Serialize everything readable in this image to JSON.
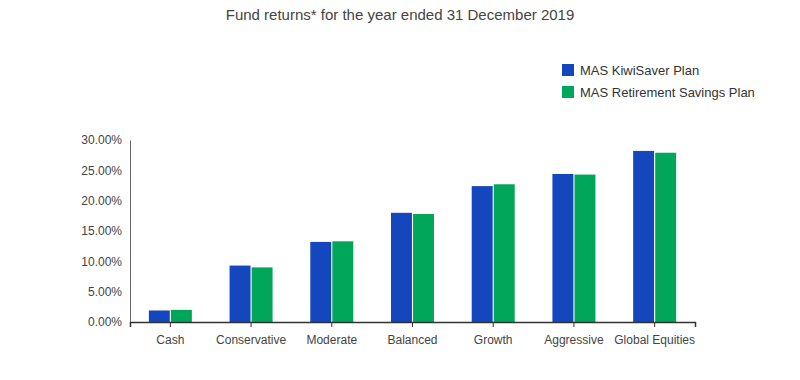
{
  "chart_data": {
    "type": "bar",
    "title": "Fund returns* for the year ended 31 December 2019",
    "categories": [
      "Cash",
      "Conservative",
      "Moderate",
      "Balanced",
      "Growth",
      "Aggressive",
      "Global Equities"
    ],
    "series": [
      {
        "name": "MAS KiwiSaver Plan",
        "color": "#1446be",
        "values": [
          1.9,
          9.3,
          13.2,
          18.0,
          22.4,
          24.4,
          28.2
        ]
      },
      {
        "name": "MAS Retirement Savings Plan",
        "color": "#00a65a",
        "values": [
          2.0,
          9.0,
          13.3,
          17.8,
          22.7,
          24.3,
          27.9
        ]
      }
    ],
    "ylim": [
      0,
      30
    ],
    "yticks": [
      {
        "value": 0,
        "label": "0.00%"
      },
      {
        "value": 5,
        "label": "5.00%"
      },
      {
        "value": 10,
        "label": "10.00%"
      },
      {
        "value": 15,
        "label": "15.00%"
      },
      {
        "value": 20,
        "label": "20.00%"
      },
      {
        "value": 25,
        "label": "25.00%"
      },
      {
        "value": 30,
        "label": "30.00%"
      }
    ],
    "grid": false,
    "legend": "top-right"
  }
}
